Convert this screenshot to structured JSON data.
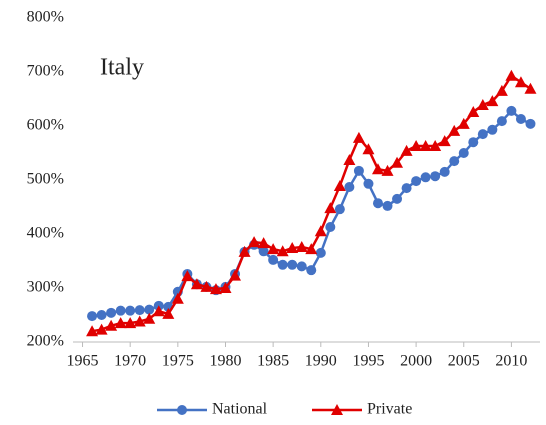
{
  "chart_data": {
    "type": "line",
    "annotation": "Italy",
    "x": [
      1966,
      1967,
      1968,
      1969,
      1970,
      1971,
      1972,
      1973,
      1974,
      1975,
      1976,
      1977,
      1978,
      1979,
      1980,
      1981,
      1982,
      1983,
      1984,
      1985,
      1986,
      1987,
      1988,
      1989,
      1990,
      1991,
      1992,
      1993,
      1994,
      1995,
      1996,
      1997,
      1998,
      1999,
      2000,
      2001,
      2002,
      2003,
      2004,
      2005,
      2006,
      2007,
      2008,
      2009,
      2010,
      2011,
      2012
    ],
    "series": [
      {
        "name": "National",
        "color": "#4472c4",
        "marker": "circle",
        "values": [
          248,
          250,
          254,
          258,
          258,
          259,
          260,
          267,
          265,
          293,
          326,
          307,
          302,
          296,
          302,
          326,
          367,
          380,
          368,
          352,
          343,
          343,
          340,
          333,
          365,
          413,
          446,
          487,
          517,
          493,
          457,
          452,
          465,
          485,
          498,
          505,
          507,
          515,
          535,
          550,
          570,
          585,
          593,
          609,
          628,
          613,
          604
        ]
      },
      {
        "name": "Private",
        "color": "#e00000",
        "marker": "triangle",
        "values": [
          220,
          223,
          230,
          235,
          235,
          238,
          243,
          257,
          252,
          280,
          322,
          307,
          302,
          298,
          300,
          323,
          367,
          385,
          383,
          372,
          368,
          374,
          376,
          372,
          405,
          448,
          489,
          537,
          578,
          557,
          520,
          517,
          532,
          554,
          563,
          563,
          563,
          572,
          591,
          604,
          626,
          639,
          646,
          665,
          693,
          681,
          669
        ]
      }
    ],
    "xlim": [
      1964,
      2013
    ],
    "xticks": [
      1965,
      1970,
      1975,
      1980,
      1985,
      1990,
      1995,
      2000,
      2005,
      2010
    ],
    "ylim": [
      200,
      800
    ],
    "yticks": [
      {
        "value": 200,
        "label": "200%"
      },
      {
        "value": 300,
        "label": "300%"
      },
      {
        "value": 400,
        "label": "400%"
      },
      {
        "value": 500,
        "label": "500%"
      },
      {
        "value": 600,
        "label": "600%"
      },
      {
        "value": 700,
        "label": "700%"
      },
      {
        "value": 800,
        "label": "800%"
      }
    ],
    "grid": false,
    "legend": "bottom"
  }
}
